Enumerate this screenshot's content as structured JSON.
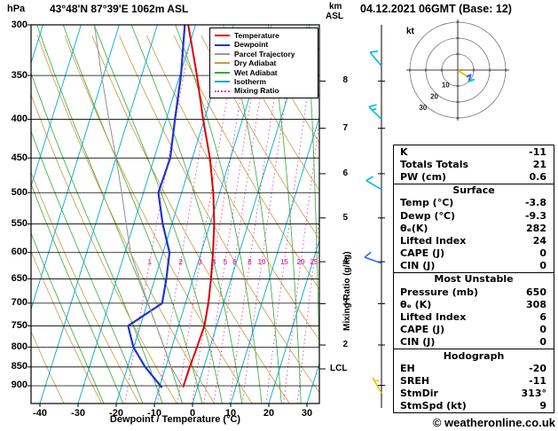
{
  "header": {
    "pressure_unit": "hPa",
    "station_title": "43°48'N 87°39'E 1062m ASL",
    "altitude_unit_top": "km",
    "altitude_unit_bottom": "ASL",
    "date_title": "04.12.2021 06GMT (Base: 12)"
  },
  "colors": {
    "temperature": "#dd0000",
    "dewpoint": "#2233cc",
    "parcel": "#999999",
    "dry_adiabat": "#cc9944",
    "wet_adiabat": "#33aa33",
    "isotherm": "#00aacc",
    "mixing_ratio": "#dd44aa",
    "barb_high": "#00bbdd",
    "barb_mid": "#3366ee",
    "barb_low": "#ddcc00"
  },
  "legend": {
    "items": [
      {
        "label": "Temperature",
        "color": "#dd0000",
        "style": "solid"
      },
      {
        "label": "Dewpoint",
        "color": "#2233cc",
        "style": "solid"
      },
      {
        "label": "Parcel Trajectory",
        "color": "#999999",
        "style": "solid"
      },
      {
        "label": "Dry Adiabat",
        "color": "#cc9944",
        "style": "solid"
      },
      {
        "label": "Wet Adiabat",
        "color": "#33aa33",
        "style": "solid"
      },
      {
        "label": "Isotherm",
        "color": "#00aacc",
        "style": "solid"
      },
      {
        "label": "Mixing Ratio",
        "color": "#dd44aa",
        "style": "dotted"
      }
    ]
  },
  "axes": {
    "x_label": "Dewpoint / Temperature (°C)",
    "right_axis_label": "Mixing Ratio (g/kg)",
    "lcl_label": "LCL",
    "pressure_ticks": [
      300,
      350,
      400,
      450,
      500,
      550,
      600,
      650,
      700,
      750,
      800,
      850,
      900
    ],
    "temp_ticks": [
      -40,
      -30,
      -20,
      -10,
      0,
      10,
      20,
      30
    ],
    "km_levels": [
      {
        "km": 8,
        "p": 356
      },
      {
        "km": 7,
        "p": 411
      },
      {
        "km": 6,
        "p": 472
      },
      {
        "km": 5,
        "p": 540
      },
      {
        "km": 4,
        "p": 617
      },
      {
        "km": 3,
        "p": 701
      },
      {
        "km": 2,
        "p": 795
      }
    ],
    "lcl_pressure": 855,
    "pressure_range": [
      300,
      950
    ]
  },
  "chart_data": {
    "type": "line",
    "subtype": "skew-t-log-p-sounding",
    "series": [
      {
        "name": "Temperature",
        "points": [
          [
            905,
            -3.8
          ],
          [
            850,
            -3.7
          ],
          [
            800,
            -3.4
          ],
          [
            750,
            -3.2
          ],
          [
            700,
            -4.0
          ],
          [
            650,
            -5.3
          ],
          [
            600,
            -6.9
          ],
          [
            550,
            -8.9
          ],
          [
            500,
            -11.7
          ],
          [
            450,
            -15.4
          ],
          [
            400,
            -20.3
          ],
          [
            350,
            -25.5
          ],
          [
            300,
            -31.9
          ]
        ]
      },
      {
        "name": "Dewpoint",
        "points": [
          [
            905,
            -9.3
          ],
          [
            850,
            -15.4
          ],
          [
            800,
            -20.1
          ],
          [
            750,
            -23.2
          ],
          [
            700,
            -16.1
          ],
          [
            650,
            -17.0
          ],
          [
            600,
            -18.3
          ],
          [
            550,
            -22.4
          ],
          [
            500,
            -26.1
          ],
          [
            450,
            -25.8
          ],
          [
            400,
            -27.7
          ],
          [
            350,
            -29.7
          ],
          [
            300,
            -32.8
          ]
        ]
      },
      {
        "name": "Parcel Trajectory",
        "points": [
          [
            905,
            -3.8
          ],
          [
            850,
            -8.6
          ],
          [
            800,
            -12.0
          ],
          [
            750,
            -15.8
          ],
          [
            700,
            -19.8
          ],
          [
            650,
            -24.0
          ],
          [
            600,
            -28.5
          ],
          [
            550,
            -32.0
          ],
          [
            500,
            -35.7
          ],
          [
            450,
            -40.0
          ],
          [
            400,
            -45.0
          ],
          [
            350,
            -50.5
          ],
          [
            300,
            -56.5
          ]
        ]
      }
    ],
    "mixing_ratio_values": [
      1,
      2,
      3,
      4,
      5,
      6,
      8,
      10,
      15,
      20,
      25
    ],
    "mixing_ratio_label_pressure": 617,
    "wind_barbs": [
      {
        "p": 340,
        "dir": 320,
        "spd": 10,
        "color_key": "barb_high"
      },
      {
        "p": 400,
        "dir": 315,
        "spd": 15,
        "color_key": "barb_high"
      },
      {
        "p": 495,
        "dir": 300,
        "spd": 10,
        "color_key": "barb_high"
      },
      {
        "p": 620,
        "dir": 290,
        "spd": 10,
        "color_key": "barb_mid"
      },
      {
        "p": 920,
        "dir": 330,
        "spd": 5,
        "color_key": "barb_low"
      }
    ]
  },
  "hodograph": {
    "unit_label": "kt",
    "rings": [
      10,
      20,
      30
    ],
    "trace": [
      [
        0.5,
        -0.5
      ],
      [
        3,
        -2
      ],
      [
        6,
        -4
      ],
      [
        8,
        -3
      ],
      [
        7,
        -7
      ],
      [
        10,
        -6
      ]
    ],
    "trace_colors": [
      "#ddcc00",
      "#ddcc00",
      "#3366ee",
      "#3366ee",
      "#00bbdd"
    ]
  },
  "stats": {
    "top_rows": [
      {
        "label": "K",
        "value": "-11"
      },
      {
        "label": "Totals Totals",
        "value": "21"
      },
      {
        "label": "PW (cm)",
        "value": "0.6"
      }
    ],
    "surface": {
      "title": "Surface",
      "rows": [
        {
          "label": "Temp (°C)",
          "value": "-3.8"
        },
        {
          "label": "Dewp (°C)",
          "value": "-9.3"
        },
        {
          "label": "θₑ(K)",
          "value": "282"
        },
        {
          "label": "Lifted Index",
          "value": "24"
        },
        {
          "label": "CAPE (J)",
          "value": "0"
        },
        {
          "label": "CIN (J)",
          "value": "0"
        }
      ]
    },
    "most_unstable": {
      "title": "Most Unstable",
      "rows": [
        {
          "label": "Pressure (mb)",
          "value": "650"
        },
        {
          "label": "θₑ (K)",
          "value": "308"
        },
        {
          "label": "Lifted Index",
          "value": "6"
        },
        {
          "label": "CAPE (J)",
          "value": "0"
        },
        {
          "label": "CIN (J)",
          "value": "0"
        }
      ]
    },
    "hodograph_section": {
      "title": "Hodograph",
      "rows": [
        {
          "label": "EH",
          "value": "-20"
        },
        {
          "label": "SREH",
          "value": "-11"
        },
        {
          "label": "StmDir",
          "value": "313°"
        },
        {
          "label": "StmSpd (kt)",
          "value": "9"
        }
      ]
    }
  },
  "footer": {
    "copyright": "© weatheronline.co.uk"
  }
}
